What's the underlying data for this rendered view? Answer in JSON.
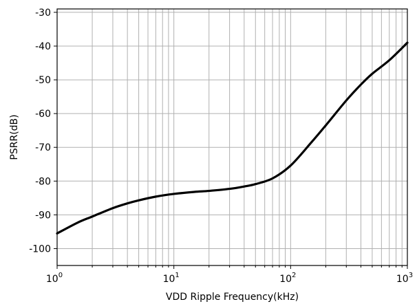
{
  "chart_data": {
    "type": "line",
    "title": "",
    "xlabel": "VDD Ripple Frequency(kHz)",
    "ylabel": "PSRR(dB)",
    "xscale": "log",
    "xlim": [
      1,
      1000
    ],
    "ylim": [
      -105,
      -29
    ],
    "grid": true,
    "legend": "none",
    "x_ticks": [
      {
        "base": "10",
        "exp": "0"
      },
      {
        "base": "10",
        "exp": "1"
      },
      {
        "base": "10",
        "exp": "2"
      },
      {
        "base": "10",
        "exp": "3"
      }
    ],
    "y_ticks": [
      "-30",
      "-40",
      "-50",
      "-60",
      "-70",
      "-80",
      "-90",
      "-100"
    ],
    "series": [
      {
        "color": "#000000",
        "x": [
          1,
          1.5,
          2,
          3,
          4,
          5,
          7,
          10,
          15,
          20,
          30,
          40,
          50,
          70,
          100,
          150,
          200,
          300,
          400,
          500,
          700,
          1000
        ],
        "y": [
          -95.5,
          -92.3,
          -90.5,
          -88.0,
          -86.6,
          -85.7,
          -84.6,
          -83.8,
          -83.2,
          -82.9,
          -82.3,
          -81.6,
          -80.9,
          -79.2,
          -75.4,
          -68.6,
          -63.5,
          -56.1,
          -51.4,
          -48.2,
          -44.2,
          -39.0
        ]
      }
    ]
  }
}
